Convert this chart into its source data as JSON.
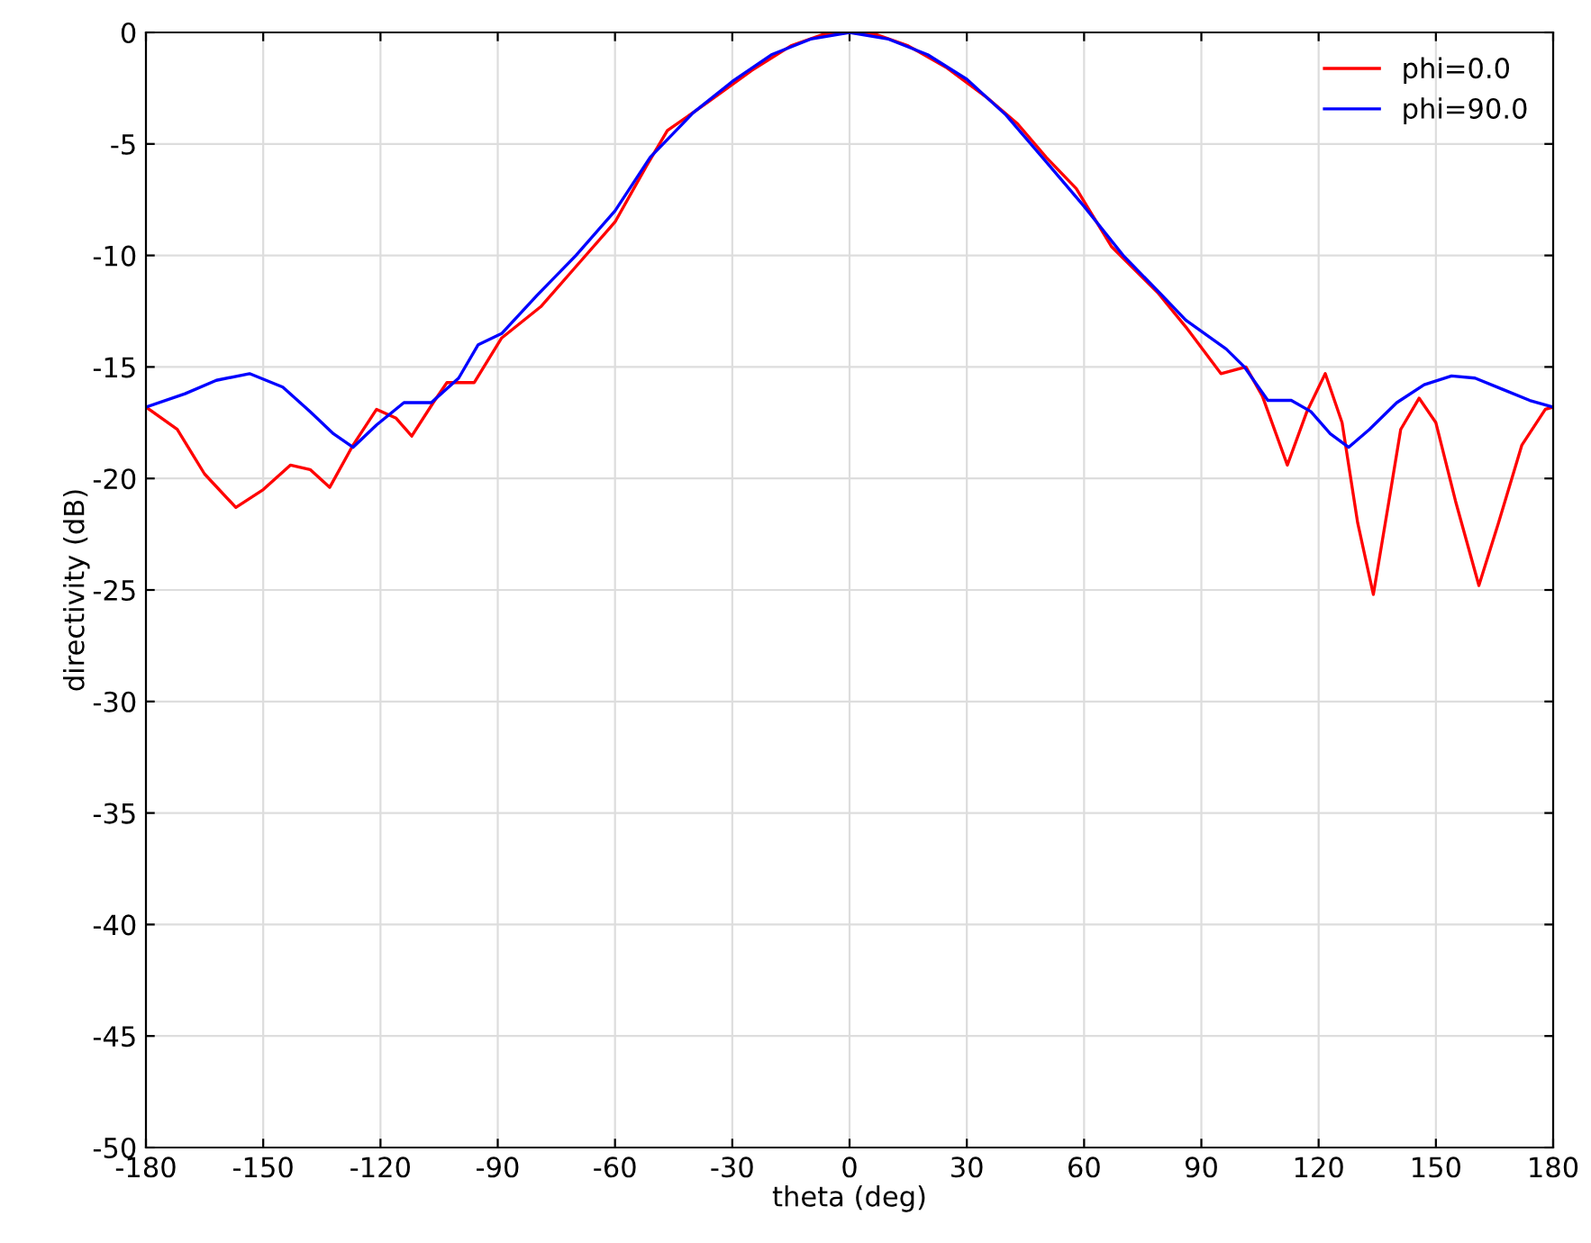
{
  "chart_data": {
    "type": "line",
    "xlabel": "theta (deg)",
    "ylabel": "directivity (dB)",
    "xlim": [
      -180,
      180
    ],
    "ylim": [
      -50,
      0
    ],
    "xticks": [
      -180,
      -150,
      -120,
      -90,
      -60,
      -30,
      0,
      30,
      60,
      90,
      120,
      150,
      180
    ],
    "yticks": [
      -50,
      -45,
      -40,
      -35,
      -30,
      -25,
      -20,
      -15,
      -10,
      -5,
      0
    ],
    "grid": true,
    "legend": "top right",
    "marker": "none",
    "line_style": "solid",
    "series": [
      {
        "name": "phi=0.0",
        "color": "#ff0000",
        "x": [
          -180,
          -172,
          -165,
          -157,
          -150,
          -143,
          -138,
          -133,
          -127,
          -121,
          -116,
          -112,
          -106.5,
          -103,
          -96,
          -89,
          -79,
          -70,
          -60,
          -52,
          -46.6,
          -36,
          -25,
          -15,
          -7,
          0,
          7,
          15,
          25,
          35,
          43,
          50.3,
          58,
          67,
          79,
          86,
          95,
          101.4,
          105.6,
          112,
          117,
          121.7,
          126,
          130,
          134,
          138,
          141,
          145.7,
          150,
          155,
          161,
          166,
          172,
          178,
          180
        ],
        "values": [
          -16.8,
          -17.8,
          -19.8,
          -21.3,
          -20.5,
          -19.4,
          -19.6,
          -20.4,
          -18.5,
          -16.9,
          -17.3,
          -18.1,
          -16.6,
          -15.7,
          -15.7,
          -13.7,
          -12.3,
          -10.5,
          -8.5,
          -6.0,
          -4.4,
          -3.1,
          -1.7,
          -0.6,
          -0.1,
          0,
          -0.1,
          -0.6,
          -1.6,
          -2.9,
          -4.1,
          -5.6,
          -7.0,
          -9.6,
          -11.7,
          -13.2,
          -15.3,
          -15.0,
          -16.3,
          -19.4,
          -17.0,
          -15.3,
          -17.5,
          -22,
          -25.2,
          -21,
          -17.8,
          -16.4,
          -17.5,
          -21,
          -24.8,
          -22,
          -18.5,
          -16.9,
          -16.8
        ]
      },
      {
        "name": "phi=90.0",
        "color": "#0000ff",
        "x": [
          -180,
          -170,
          -162,
          -153.5,
          -145,
          -138,
          -132,
          -127,
          -121,
          -114,
          -107,
          -100,
          -95,
          -89,
          -80,
          -70,
          -60,
          -51,
          -40,
          -30,
          -20,
          -10,
          0,
          10,
          20,
          30,
          40,
          50.3,
          60,
          70,
          80,
          86,
          96.4,
          101,
          107,
          113,
          118,
          123,
          127.7,
          133,
          140,
          147,
          154,
          160,
          167,
          174,
          180
        ],
        "values": [
          -16.8,
          -16.2,
          -15.6,
          -15.3,
          -15.9,
          -17.0,
          -18.0,
          -18.6,
          -17.6,
          -16.6,
          -16.6,
          -15.5,
          -14.0,
          -13.5,
          -11.8,
          -10.0,
          -8.0,
          -5.6,
          -3.6,
          -2.2,
          -1.0,
          -0.3,
          0,
          -0.3,
          -1.0,
          -2.1,
          -3.7,
          -5.8,
          -7.8,
          -10.0,
          -11.8,
          -12.9,
          -14.2,
          -15.0,
          -16.5,
          -16.5,
          -17.0,
          -18.0,
          -18.6,
          -17.8,
          -16.6,
          -15.8,
          -15.4,
          -15.5,
          -16.0,
          -16.5,
          -16.8
        ]
      }
    ]
  }
}
